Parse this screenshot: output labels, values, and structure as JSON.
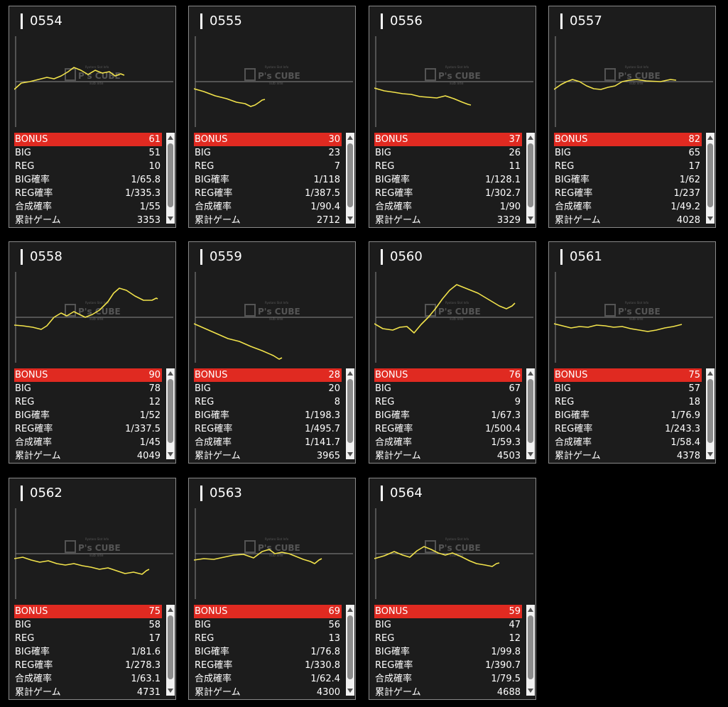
{
  "watermark": {
    "brand": "P's CUBE",
    "tagline": "Ryotaro Slot Info",
    "sub": "sub site"
  },
  "colors": {
    "bonus_bar": "#e02a21",
    "graph_line": "#f2e34b",
    "card_bg": "#1c1c1c"
  },
  "machines": [
    {
      "id": "0554",
      "stats": [
        {
          "label": "BONUS",
          "value": "61"
        },
        {
          "label": "BIG",
          "value": "51"
        },
        {
          "label": "REG",
          "value": "10"
        },
        {
          "label": "BIG確率",
          "value": "1/65.8"
        },
        {
          "label": "REG確率",
          "value": "1/335.3"
        },
        {
          "label": "合成確率",
          "value": "1/55"
        },
        {
          "label": "累計ゲーム",
          "value": "3353"
        }
      ]
    },
    {
      "id": "0555",
      "stats": [
        {
          "label": "BONUS",
          "value": "30"
        },
        {
          "label": "BIG",
          "value": "23"
        },
        {
          "label": "REG",
          "value": "7"
        },
        {
          "label": "BIG確率",
          "value": "1/118"
        },
        {
          "label": "REG確率",
          "value": "1/387.5"
        },
        {
          "label": "合成確率",
          "value": "1/90.4"
        },
        {
          "label": "累計ゲーム",
          "value": "2712"
        }
      ]
    },
    {
      "id": "0556",
      "stats": [
        {
          "label": "BONUS",
          "value": "37"
        },
        {
          "label": "BIG",
          "value": "26"
        },
        {
          "label": "REG",
          "value": "11"
        },
        {
          "label": "BIG確率",
          "value": "1/128.1"
        },
        {
          "label": "REG確率",
          "value": "1/302.7"
        },
        {
          "label": "合成確率",
          "value": "1/90"
        },
        {
          "label": "累計ゲーム",
          "value": "3329"
        }
      ]
    },
    {
      "id": "0557",
      "stats": [
        {
          "label": "BONUS",
          "value": "82"
        },
        {
          "label": "BIG",
          "value": "65"
        },
        {
          "label": "REG",
          "value": "17"
        },
        {
          "label": "BIG確率",
          "value": "1/62"
        },
        {
          "label": "REG確率",
          "value": "1/237"
        },
        {
          "label": "合成確率",
          "value": "1/49.2"
        },
        {
          "label": "累計ゲーム",
          "value": "4028"
        }
      ]
    },
    {
      "id": "0558",
      "stats": [
        {
          "label": "BONUS",
          "value": "90"
        },
        {
          "label": "BIG",
          "value": "78"
        },
        {
          "label": "REG",
          "value": "12"
        },
        {
          "label": "BIG確率",
          "value": "1/52"
        },
        {
          "label": "REG確率",
          "value": "1/337.5"
        },
        {
          "label": "合成確率",
          "value": "1/45"
        },
        {
          "label": "累計ゲーム",
          "value": "4049"
        }
      ]
    },
    {
      "id": "0559",
      "stats": [
        {
          "label": "BONUS",
          "value": "28"
        },
        {
          "label": "BIG",
          "value": "20"
        },
        {
          "label": "REG",
          "value": "8"
        },
        {
          "label": "BIG確率",
          "value": "1/198.3"
        },
        {
          "label": "REG確率",
          "value": "1/495.7"
        },
        {
          "label": "合成確率",
          "value": "1/141.7"
        },
        {
          "label": "累計ゲーム",
          "value": "3965"
        }
      ]
    },
    {
      "id": "0560",
      "stats": [
        {
          "label": "BONUS",
          "value": "76"
        },
        {
          "label": "BIG",
          "value": "67"
        },
        {
          "label": "REG",
          "value": "9"
        },
        {
          "label": "BIG確率",
          "value": "1/67.3"
        },
        {
          "label": "REG確率",
          "value": "1/500.4"
        },
        {
          "label": "合成確率",
          "value": "1/59.3"
        },
        {
          "label": "累計ゲーム",
          "value": "4503"
        }
      ]
    },
    {
      "id": "0561",
      "stats": [
        {
          "label": "BONUS",
          "value": "75"
        },
        {
          "label": "BIG",
          "value": "57"
        },
        {
          "label": "REG",
          "value": "18"
        },
        {
          "label": "BIG確率",
          "value": "1/76.9"
        },
        {
          "label": "REG確率",
          "value": "1/243.3"
        },
        {
          "label": "合成確率",
          "value": "1/58.4"
        },
        {
          "label": "累計ゲーム",
          "value": "4378"
        }
      ]
    },
    {
      "id": "0562",
      "stats": [
        {
          "label": "BONUS",
          "value": "75"
        },
        {
          "label": "BIG",
          "value": "58"
        },
        {
          "label": "REG",
          "value": "17"
        },
        {
          "label": "BIG確率",
          "value": "1/81.6"
        },
        {
          "label": "REG確率",
          "value": "1/278.3"
        },
        {
          "label": "合成確率",
          "value": "1/63.1"
        },
        {
          "label": "累計ゲーム",
          "value": "4731"
        }
      ]
    },
    {
      "id": "0563",
      "stats": [
        {
          "label": "BONUS",
          "value": "69"
        },
        {
          "label": "BIG",
          "value": "56"
        },
        {
          "label": "REG",
          "value": "13"
        },
        {
          "label": "BIG確率",
          "value": "1/76.8"
        },
        {
          "label": "REG確率",
          "value": "1/330.8"
        },
        {
          "label": "合成確率",
          "value": "1/62.4"
        },
        {
          "label": "累計ゲーム",
          "value": "4300"
        }
      ]
    },
    {
      "id": "0564",
      "stats": [
        {
          "label": "BONUS",
          "value": "59"
        },
        {
          "label": "BIG",
          "value": "47"
        },
        {
          "label": "REG",
          "value": "12"
        },
        {
          "label": "BIG確率",
          "value": "1/99.8"
        },
        {
          "label": "REG確率",
          "value": "1/390.7"
        },
        {
          "label": "合成確率",
          "value": "1/79.5"
        },
        {
          "label": "累計ゲーム",
          "value": "4688"
        }
      ]
    }
  ]
}
